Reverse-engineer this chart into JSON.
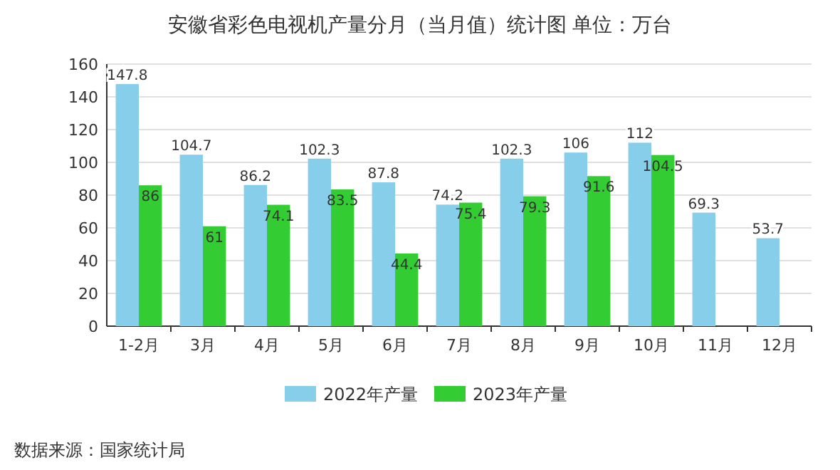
{
  "chart_data": {
    "type": "bar",
    "title": "安徽省彩色电视机产量分月（当月值）统计图 单位：万台",
    "categories": [
      "1-2月",
      "3月",
      "4月",
      "5月",
      "6月",
      "7月",
      "8月",
      "9月",
      "10月",
      "11月",
      "12月"
    ],
    "series": [
      {
        "name": "2022年产量",
        "color": "#87ceeb",
        "values": [
          147.8,
          104.7,
          86.2,
          102.3,
          87.8,
          74.2,
          102.3,
          106,
          112,
          69.3,
          53.7
        ]
      },
      {
        "name": "2023年产量",
        "color": "#33cc33",
        "values": [
          86,
          61,
          74.1,
          83.5,
          44.4,
          75.4,
          79.3,
          91.6,
          104.5,
          null,
          null
        ]
      }
    ],
    "ylim": [
      0,
      160
    ],
    "yticks": [
      0,
      20,
      40,
      60,
      80,
      100,
      120,
      140,
      160
    ],
    "grid": "y",
    "legend": "bottom",
    "data_labels": true,
    "annotations": [
      "数据来源：国家统计局"
    ]
  }
}
